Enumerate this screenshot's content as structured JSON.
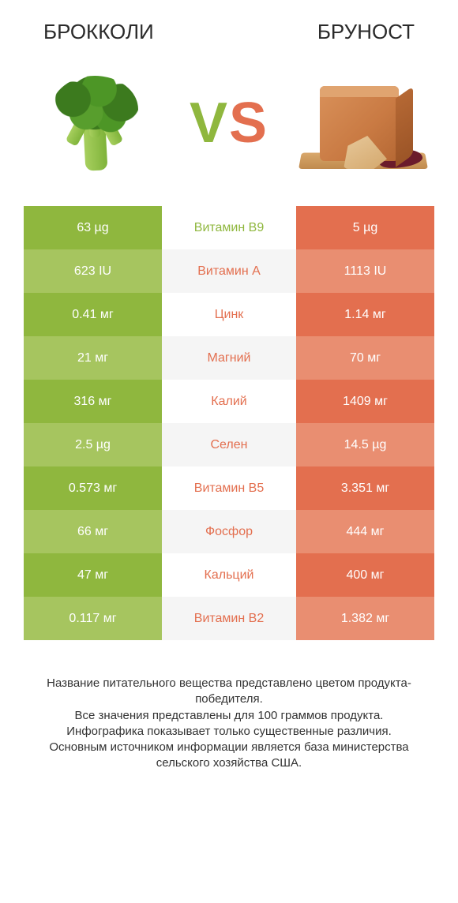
{
  "colors": {
    "left_primary": "#8fb73e",
    "left_alt": "#a6c55f",
    "right_primary": "#e36f4f",
    "right_alt": "#e98e71",
    "mid_alt": "#f5f5f5",
    "background": "#ffffff",
    "text": "#333333"
  },
  "fontsize": {
    "title": 26,
    "vs": 72,
    "row": 16,
    "footer": 15
  },
  "header": {
    "left": "БРОККОЛИ",
    "right": "БРУНОСТ",
    "vs": "VS",
    "left_icon": "broccoli",
    "right_icon": "brunost-cheese"
  },
  "rows": [
    {
      "left": "63 µg",
      "label": "Витамин B9",
      "right": "5 µg",
      "winner": "left"
    },
    {
      "left": "623 IU",
      "label": "Витамин A",
      "right": "1113 IU",
      "winner": "right"
    },
    {
      "left": "0.41 мг",
      "label": "Цинк",
      "right": "1.14 мг",
      "winner": "right"
    },
    {
      "left": "21 мг",
      "label": "Магний",
      "right": "70 мг",
      "winner": "right"
    },
    {
      "left": "316 мг",
      "label": "Калий",
      "right": "1409 мг",
      "winner": "right"
    },
    {
      "left": "2.5 µg",
      "label": "Селен",
      "right": "14.5 µg",
      "winner": "right"
    },
    {
      "left": "0.573 мг",
      "label": "Витамин B5",
      "right": "3.351 мг",
      "winner": "right"
    },
    {
      "left": "66 мг",
      "label": "Фосфор",
      "right": "444 мг",
      "winner": "right"
    },
    {
      "left": "47 мг",
      "label": "Кальций",
      "right": "400 мг",
      "winner": "right"
    },
    {
      "left": "0.117 мг",
      "label": "Витамин B2",
      "right": "1.382 мг",
      "winner": "right"
    }
  ],
  "footer": {
    "l1": "Название питательного вещества представлено цветом продукта-победителя.",
    "l2": "Все значения представлены для 100 граммов продукта.",
    "l3": "Инфографика показывает только существенные различия.",
    "l4": "Основным источником информации является база министерства сельского хозяйства США."
  }
}
